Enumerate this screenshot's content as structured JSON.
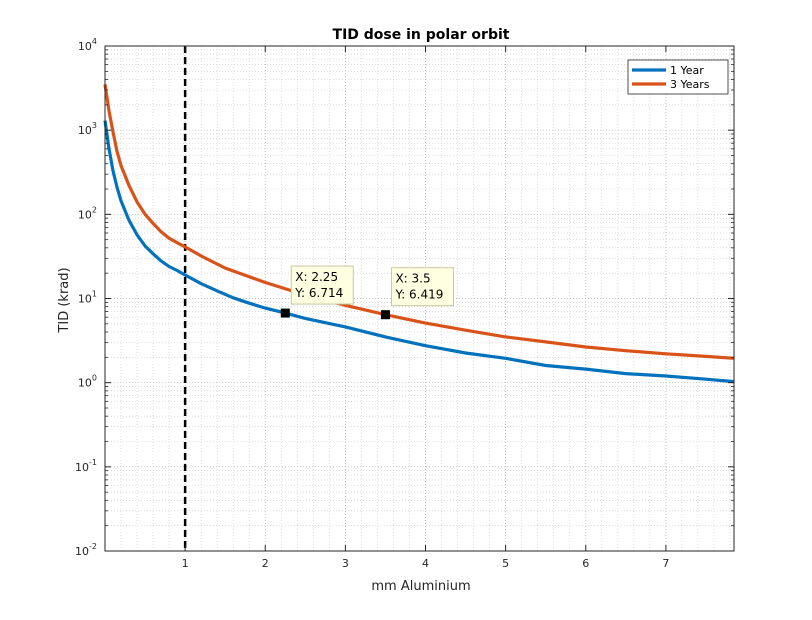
{
  "chart_data": {
    "type": "line",
    "title": "TID dose in polar orbit",
    "xlabel": "mm Aluminium",
    "ylabel": "TID (krad)",
    "xlim": [
      0,
      7.85
    ],
    "ylim": [
      0.01,
      10000
    ],
    "yscale": "log",
    "grid": true,
    "minor_grid": true,
    "legend_position": "top-right",
    "x_ticks": [
      1,
      2,
      3,
      4,
      5,
      6,
      7
    ],
    "y_ticks": [
      {
        "base": "10",
        "exp": "-2",
        "value": 0.01
      },
      {
        "base": "10",
        "exp": "-1",
        "value": 0.1
      },
      {
        "base": "10",
        "exp": "0",
        "value": 1
      },
      {
        "base": "10",
        "exp": "1",
        "value": 10
      },
      {
        "base": "10",
        "exp": "2",
        "value": 100
      },
      {
        "base": "10",
        "exp": "3",
        "value": 1000
      },
      {
        "base": "10",
        "exp": "4",
        "value": 10000
      }
    ],
    "series": [
      {
        "name": "1 Year",
        "color": "#0072BD",
        "x": [
          0.0,
          0.05,
          0.1,
          0.15,
          0.2,
          0.3,
          0.4,
          0.5,
          0.6,
          0.7,
          0.8,
          0.9,
          1.0,
          1.2,
          1.4,
          1.6,
          1.8,
          2.0,
          2.25,
          2.5,
          3.0,
          3.5,
          4.0,
          4.5,
          5.0,
          5.5,
          6.0,
          6.5,
          7.0,
          7.5,
          7.85
        ],
        "y": [
          1300,
          600,
          330,
          210,
          145,
          85,
          57,
          42,
          34,
          28,
          24,
          21.5,
          19,
          15,
          12.3,
          10.2,
          8.8,
          7.7,
          6.714,
          5.8,
          4.6,
          3.5,
          2.75,
          2.25,
          1.95,
          1.6,
          1.45,
          1.28,
          1.2,
          1.1,
          1.03
        ]
      },
      {
        "name": "3 Years",
        "color": "#D95319",
        "x": [
          0.0,
          0.05,
          0.1,
          0.15,
          0.2,
          0.3,
          0.4,
          0.5,
          0.6,
          0.7,
          0.8,
          0.9,
          1.0,
          1.2,
          1.5,
          2.0,
          2.5,
          3.0,
          3.5,
          4.0,
          4.5,
          5.0,
          5.5,
          6.0,
          6.5,
          7.0,
          7.5,
          7.85
        ],
        "y": [
          3500,
          1700,
          950,
          560,
          380,
          220,
          140,
          100,
          78,
          62,
          52,
          46,
          41,
          32,
          23,
          15.5,
          11,
          8.3,
          6.419,
          5.1,
          4.2,
          3.5,
          3.05,
          2.65,
          2.4,
          2.2,
          2.05,
          1.95
        ]
      }
    ],
    "vline": {
      "x": 1,
      "style": "dashed",
      "color": "#000000"
    },
    "datatips": [
      {
        "x": 2.25,
        "y": 6.714,
        "label_x": "X: 2.25",
        "label_y": "Y: 6.714"
      },
      {
        "x": 3.5,
        "y": 6.419,
        "label_x": "X: 3.5",
        "label_y": "Y: 6.419"
      }
    ]
  }
}
